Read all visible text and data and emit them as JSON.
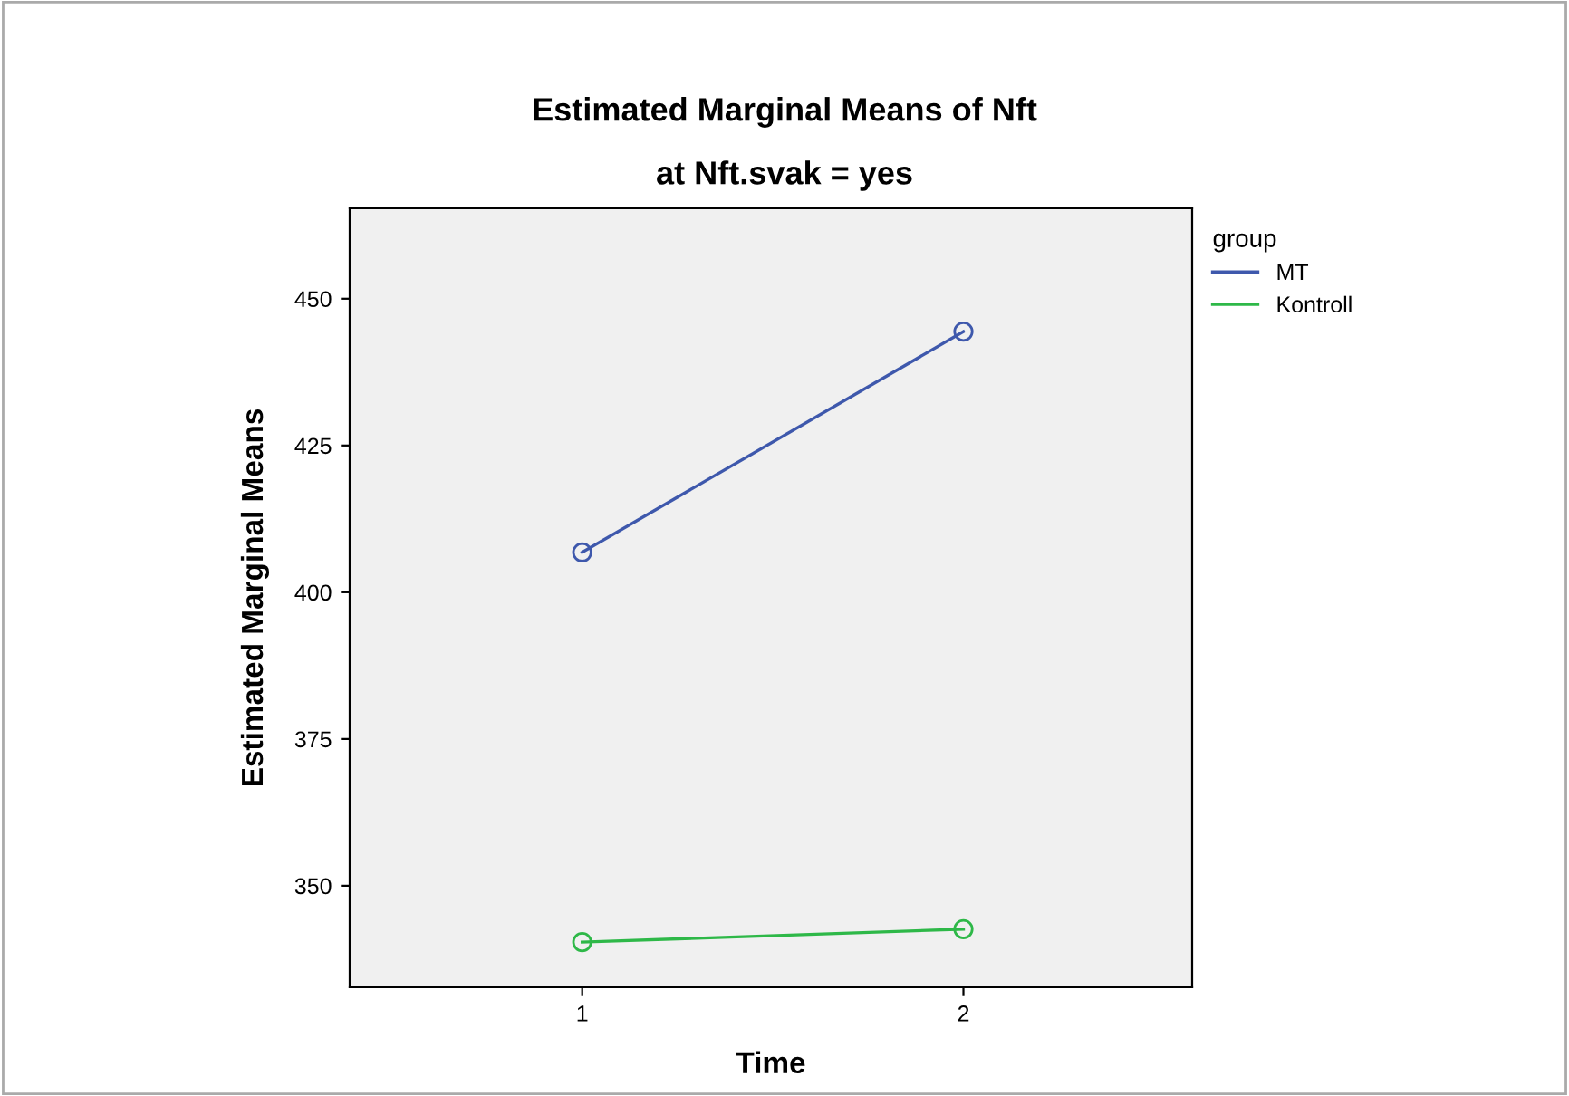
{
  "chart_data": {
    "type": "line",
    "title": "Estimated Marginal Means of Nft",
    "subtitle": "at Nft.svak = yes",
    "xlabel": "Time",
    "ylabel": "Estimated Marginal Means",
    "legend_title": "group",
    "categories": [
      "1",
      "2"
    ],
    "series": [
      {
        "name": "MT",
        "color": "#3e58ac",
        "values": [
          406.8,
          444.4
        ]
      },
      {
        "name": "Kontroll",
        "color": "#2eb848",
        "values": [
          340.4,
          342.6
        ]
      }
    ],
    "ylim": [
      332.7,
      465.4
    ],
    "yticks": [
      350,
      375,
      400,
      425,
      450
    ],
    "marker": "circle",
    "line_style": "solid",
    "grid": false,
    "legend": "top right"
  }
}
